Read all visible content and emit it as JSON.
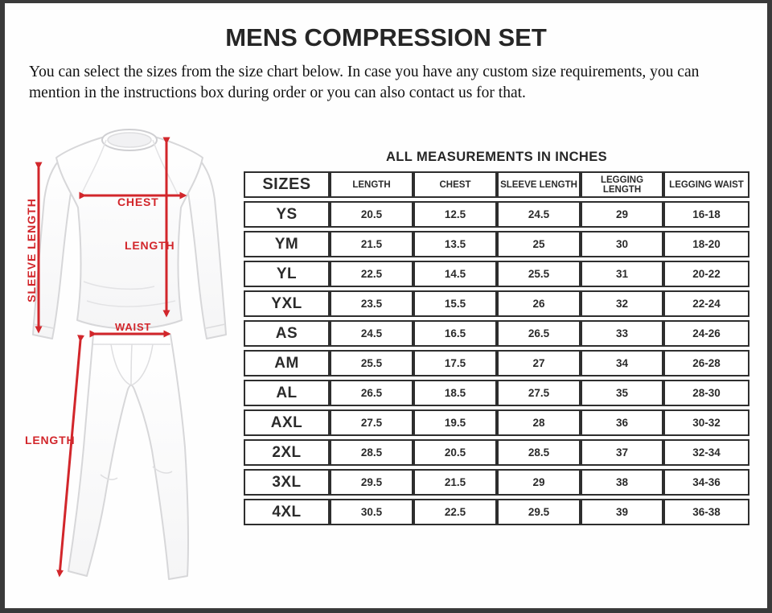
{
  "page": {
    "title": "MENS COMPRESSION SET",
    "description": "You can select the sizes from the size chart below. In case you have any custom size requirements, you can mention in the instructions box during order or you can also contact us for that."
  },
  "diagram": {
    "arrow_color": "#d2262b",
    "garment": "mens compression shirt and leggings",
    "labels": {
      "sleeve_length": "SLEEVE LENGTH",
      "chest": "CHEST",
      "shirt_length": "LENGTH",
      "waist": "WAIST",
      "legging_length": "LENGTH"
    }
  },
  "table": {
    "title": "ALL MEASUREMENTS IN INCHES",
    "columns": [
      "SIZES",
      "LENGTH",
      "CHEST",
      "SLEEVE LENGTH",
      "LEGGING LENGTH",
      "LEGGING WAIST"
    ],
    "rows": [
      [
        "YS",
        "20.5",
        "12.5",
        "24.5",
        "29",
        "16-18"
      ],
      [
        "YM",
        "21.5",
        "13.5",
        "25",
        "30",
        "18-20"
      ],
      [
        "YL",
        "22.5",
        "14.5",
        "25.5",
        "31",
        "20-22"
      ],
      [
        "YXL",
        "23.5",
        "15.5",
        "26",
        "32",
        "22-24"
      ],
      [
        "AS",
        "24.5",
        "16.5",
        "26.5",
        "33",
        "24-26"
      ],
      [
        "AM",
        "25.5",
        "17.5",
        "27",
        "34",
        "26-28"
      ],
      [
        "AL",
        "26.5",
        "18.5",
        "27.5",
        "35",
        "28-30"
      ],
      [
        "AXL",
        "27.5",
        "19.5",
        "28",
        "36",
        "30-32"
      ],
      [
        "2XL",
        "28.5",
        "20.5",
        "28.5",
        "37",
        "32-34"
      ],
      [
        "3XL",
        "29.5",
        "21.5",
        "29",
        "38",
        "34-36"
      ],
      [
        "4XL",
        "30.5",
        "22.5",
        "29.5",
        "39",
        "36-38"
      ]
    ]
  }
}
